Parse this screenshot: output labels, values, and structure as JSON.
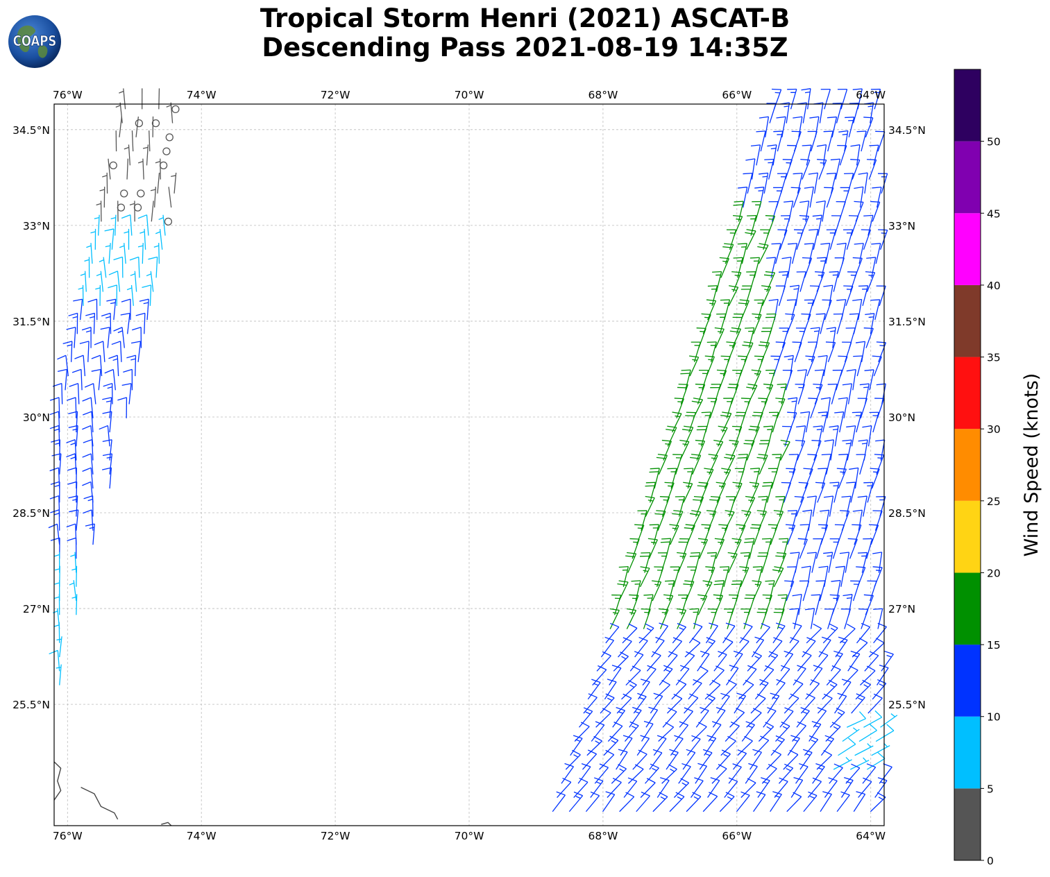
{
  "title": {
    "line1": "Tropical Storm Henri (2021) ASCAT-B",
    "line2": "Descending Pass 2021-08-19 14:35Z"
  },
  "logo": {
    "text": "COAPS",
    "icon": "globe-logo-icon"
  },
  "map": {
    "lon_range": [
      -76.2,
      -63.8
    ],
    "lat_range": [
      23.6,
      34.9
    ],
    "lon_ticks": [
      {
        "value": -76,
        "label": "76°W"
      },
      {
        "value": -74,
        "label": "74°W"
      },
      {
        "value": -72,
        "label": "72°W"
      },
      {
        "value": -70,
        "label": "70°W"
      },
      {
        "value": -68,
        "label": "68°W"
      },
      {
        "value": -66,
        "label": "66°W"
      },
      {
        "value": -64,
        "label": "64°W"
      }
    ],
    "lat_ticks": [
      {
        "value": 34.5,
        "label": "34.5°N"
      },
      {
        "value": 33,
        "label": "33°N"
      },
      {
        "value": 31.5,
        "label": "31.5°N"
      },
      {
        "value": 30,
        "label": "30°N"
      },
      {
        "value": 28.5,
        "label": "28.5°N"
      },
      {
        "value": 27,
        "label": "27°N"
      },
      {
        "value": 25.5,
        "label": "25.5°N"
      }
    ],
    "gridlines": true
  },
  "colorbar": {
    "label": "Wind Speed (knots)",
    "bins": [
      {
        "from": 0,
        "to": 5,
        "color": "#555555"
      },
      {
        "from": 5,
        "to": 10,
        "color": "#00bfff"
      },
      {
        "from": 10,
        "to": 15,
        "color": "#0033ff"
      },
      {
        "from": 15,
        "to": 20,
        "color": "#009000"
      },
      {
        "from": 20,
        "to": 25,
        "color": "#ffd414"
      },
      {
        "from": 25,
        "to": 30,
        "color": "#ff8c00"
      },
      {
        "from": 30,
        "to": 35,
        "color": "#ff1010"
      },
      {
        "from": 35,
        "to": 40,
        "color": "#7f3a2a"
      },
      {
        "from": 40,
        "to": 45,
        "color": "#ff00ff"
      },
      {
        "from": 45,
        "to": 50,
        "color": "#8000b0"
      },
      {
        "from": 50,
        "to": 55,
        "color": "#2e0060"
      }
    ],
    "tick_labels": [
      "0",
      "5",
      "10",
      "15",
      "20",
      "25",
      "30",
      "35",
      "40",
      "45",
      "50"
    ]
  },
  "chart_data": {
    "type": "wind-barbs",
    "units": "knots",
    "swaths": [
      {
        "name": "",
        "west_edge": [
          [
            -75.2,
            34.9
          ],
          [
            -76.2,
            30.0
          ],
          [
            -76.2,
            25.7
          ]
        ],
        "east_edge": [
          [
            -74.2,
            34.9
          ],
          [
            -74.4,
            33.3
          ],
          [
            -75.2,
            29.4
          ],
          [
            -76.0,
            26.2
          ]
        ],
        "zones": [
          {
            "lat_from": 32.9,
            "lat_to": 34.9,
            "speed": 3,
            "barb_dir": 0
          },
          {
            "lat_from": 31.6,
            "lat_to": 32.9,
            "speed": 7,
            "barb_dir": 0
          },
          {
            "lat_from": 27.6,
            "lat_to": 31.6,
            "speed": 12,
            "barb_dir": 0
          },
          {
            "lat_from": 25.7,
            "lat_to": 27.6,
            "speed": 7,
            "barb_dir": 0
          }
        ]
      },
      {
        "name": "",
        "west_edge": [
          [
            -65.5,
            34.9
          ],
          [
            -68.9,
            23.6
          ]
        ],
        "east_edge": [
          [
            -63.8,
            34.9
          ],
          [
            -63.8,
            23.6
          ]
        ],
        "zones": [
          {
            "lat_from": 23.6,
            "lat_to": 26.5,
            "speed": 12,
            "barb_dir": 40
          },
          {
            "lat_from": 26.5,
            "lat_to": 30.5,
            "speed": 17,
            "barb_dir": 20,
            "lon_band": [
              -68.6,
              -65.3
            ]
          },
          {
            "lat_from": 27.4,
            "lat_to": 30.3,
            "speed": 22,
            "barb_dir": 20,
            "lon_band": [
              -68.6,
              -67.2
            ]
          },
          {
            "lat_from": 30.5,
            "lat_to": 33.1,
            "speed": 17,
            "barb_dir": 20,
            "lon_band": [
              -67.2,
              -65.5
            ]
          },
          {
            "lat_from": 26.5,
            "lat_to": 34.9,
            "speed": 12,
            "barb_dir": 15
          },
          {
            "lat_from": 24.4,
            "lat_to": 25.3,
            "speed": 8,
            "barb_dir": 60,
            "lon_band": [
              -64.6,
              -63.8
            ]
          }
        ]
      }
    ],
    "coastlines": [
      {
        "name": "",
        "points": [
          [
            -76.2,
            24.6
          ],
          [
            -76.1,
            24.5
          ],
          [
            -76.15,
            24.3
          ],
          [
            -76.1,
            24.15
          ],
          [
            -76.2,
            24.0
          ]
        ]
      },
      {
        "name": "",
        "points": [
          [
            -75.8,
            24.2
          ],
          [
            -75.6,
            24.1
          ],
          [
            -75.5,
            23.9
          ],
          [
            -75.3,
            23.8
          ],
          [
            -75.25,
            23.7
          ]
        ]
      },
      {
        "name": "",
        "points": [
          [
            -74.6,
            23.62
          ],
          [
            -74.5,
            23.65
          ],
          [
            -74.45,
            23.6
          ]
        ]
      }
    ]
  }
}
